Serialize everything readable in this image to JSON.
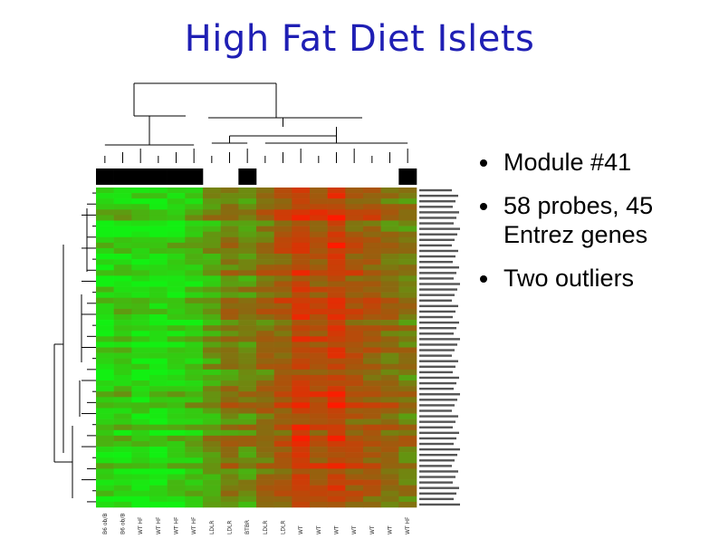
{
  "slide": {
    "title": "High Fat Diet Islets",
    "bullets": [
      {
        "text": "Module #41"
      },
      {
        "text": "58 probes, 45 Entrez genes"
      },
      {
        "text": "Two outliers"
      }
    ]
  },
  "heatmap": {
    "colors": {
      "low": "#12f012",
      "high": "#ff1a00",
      "mid": "#8a6a10",
      "marker": "#000000"
    },
    "column_groups_marked": [
      1,
      1,
      1,
      1,
      1,
      1,
      0,
      0,
      1,
      0,
      0,
      0,
      0,
      0,
      0,
      0,
      0,
      1
    ],
    "column_labels": [
      "B6 ob/B",
      "B6 ob/B",
      "WT HF",
      "WT HF",
      "WT HF",
      "WT HF",
      "LDLR",
      "LDLR",
      "BTBR",
      "LDLR",
      "LDLR",
      "WT",
      "WT",
      "WT",
      "WT",
      "WT",
      "WT",
      "WT HF"
    ],
    "row_count": 58
  }
}
